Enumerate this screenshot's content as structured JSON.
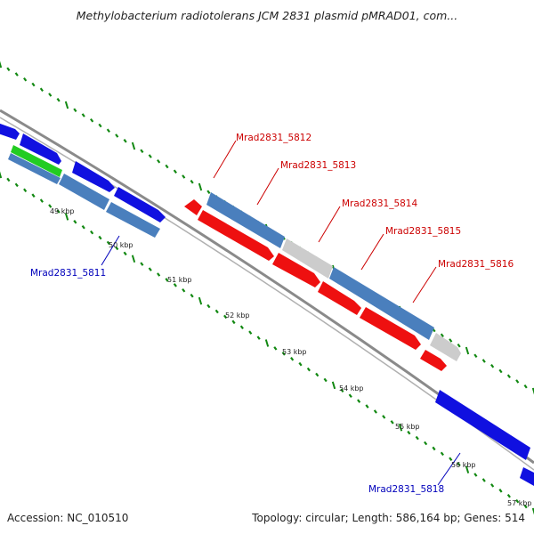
{
  "title": "Methylobacterium radiotolerans JCM 2831 plasmid pMRAD01, com...",
  "footer": {
    "accession_label": "Accession:",
    "accession": "NC_010510",
    "topology_label": "Topology:",
    "topology": "circular",
    "length_label": "Length:",
    "length": "586,164 bp",
    "genes_label": "Genes:",
    "genes": "514"
  },
  "colors": {
    "forward_strand": "#1010e0",
    "reverse_strand": "#ee1010",
    "forward_pale": "#4a7fbd",
    "rna": "#22cc22",
    "pseudo": "#cccccc",
    "backbone": "#888888",
    "tick": "#118811",
    "label_reverse": "#cc0000",
    "label_forward": "#0000bb"
  },
  "ticks": [
    "49 kbp",
    "50 kbp",
    "51 kbp",
    "52 kbp",
    "53 kbp",
    "54 kbp",
    "55 kbp",
    "56 kbp",
    "57 kbp"
  ],
  "genes": [
    {
      "label": "Mrad2831_5811",
      "strand": "forward"
    },
    {
      "label": "Mrad2831_5812",
      "strand": "reverse"
    },
    {
      "label": "Mrad2831_5813",
      "strand": "reverse"
    },
    {
      "label": "Mrad2831_5814",
      "strand": "reverse"
    },
    {
      "label": "Mrad2831_5815",
      "strand": "reverse"
    },
    {
      "label": "Mrad2831_5816",
      "strand": "reverse"
    },
    {
      "label": "Mrad2831_5818",
      "strand": "forward"
    }
  ]
}
